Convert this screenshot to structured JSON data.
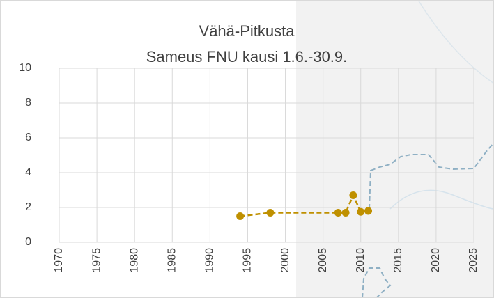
{
  "chart_data": {
    "type": "line",
    "title": "Vähä-Pitkusta",
    "subtitle": "Sameus FNU kausi 1.6.-30.9.",
    "x": [
      1994,
      1998,
      2007,
      2008,
      2009,
      2010,
      2011
    ],
    "series": [
      {
        "color": "#bf9000",
        "values": [
          1.5,
          1.7,
          1.7,
          1.7,
          2.7,
          1.75,
          1.8
        ]
      }
    ],
    "xlim": [
      1970,
      2025
    ],
    "xticks": [
      1970,
      1975,
      1980,
      1985,
      1990,
      1995,
      2000,
      2005,
      2010,
      2015,
      2020,
      2025
    ],
    "ylim": [
      0,
      10
    ],
    "yticks": [
      0,
      2,
      4,
      6,
      8,
      10
    ],
    "grid": true
  }
}
